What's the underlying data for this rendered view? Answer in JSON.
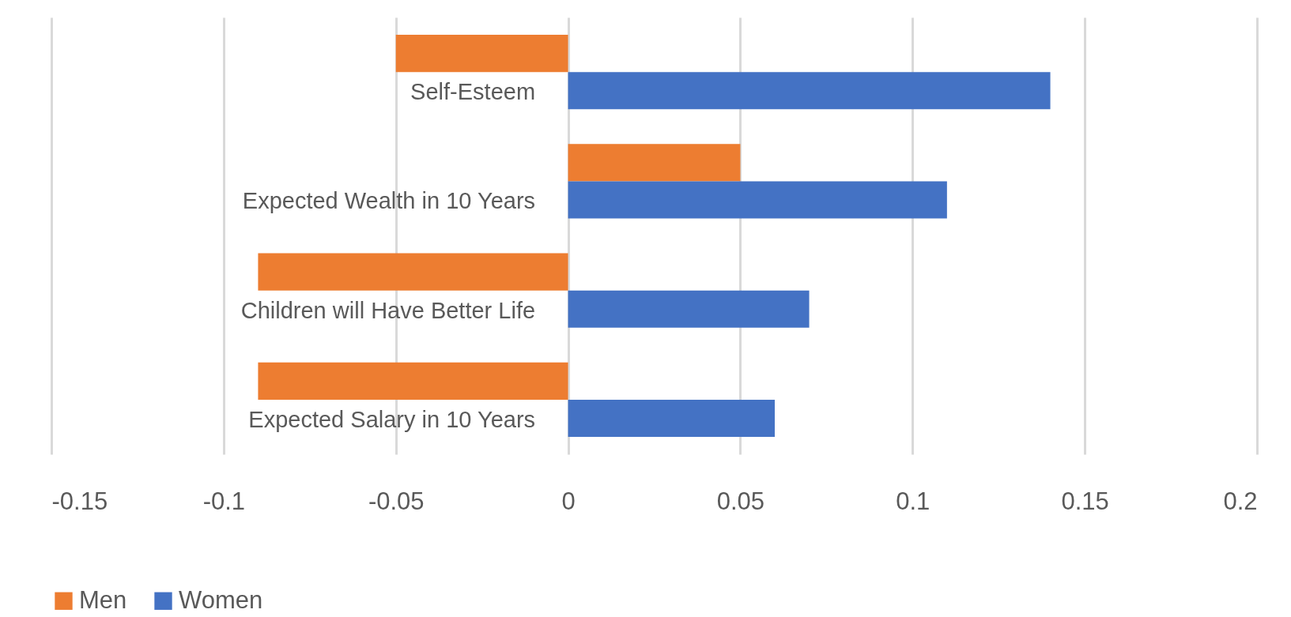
{
  "chart_data": {
    "type": "bar",
    "orientation": "horizontal",
    "categories": [
      "Self-Esteem",
      "Expected Wealth in 10 Years",
      "Children will Have Better Life",
      "Expected Salary in 10 Years"
    ],
    "series": [
      {
        "name": "Men",
        "color": "#ed7d31",
        "values": [
          -0.05,
          0.05,
          -0.09,
          -0.09
        ]
      },
      {
        "name": "Women",
        "color": "#4472c4",
        "values": [
          0.14,
          0.11,
          0.07,
          0.06
        ]
      }
    ],
    "xlim": [
      -0.15,
      0.2
    ],
    "xticks": [
      -0.15,
      -0.1,
      -0.05,
      0,
      0.05,
      0.1,
      0.15,
      0.2
    ],
    "grid": "x",
    "legend": "bottom"
  }
}
